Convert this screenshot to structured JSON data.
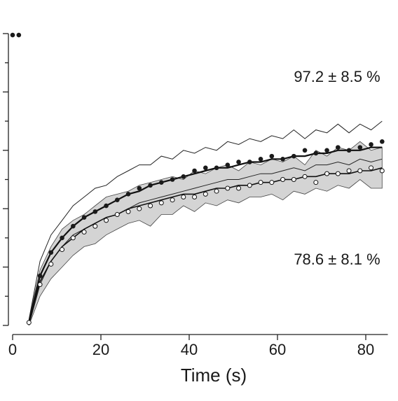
{
  "chart_data": {
    "type": "scatter",
    "xlabel": "Time (s)",
    "annotations": [
      "97.2 ± 8.5 %",
      "78.6 ± 8.1 %"
    ],
    "xlim": [
      -1,
      85
    ],
    "ylim": [
      0,
      1
    ],
    "xticks": [
      0,
      20,
      40,
      60,
      80
    ],
    "yticks": [
      0,
      0.1,
      0.2,
      0.3,
      0.4,
      0.5,
      0.6,
      0.7,
      0.8,
      0.9,
      1.0
    ],
    "series": [
      {
        "kind": "band",
        "color": "#d4d4d4",
        "x": [
          3.7,
          6.2,
          8.7,
          11.2,
          13.7,
          16.2,
          18.7,
          21.2,
          23.7,
          26.2,
          28.7,
          31.2,
          33.7,
          36.2,
          38.7,
          41.2,
          43.7,
          46.2,
          48.7,
          51.2,
          53.7,
          56.2,
          58.7,
          61.2,
          63.7,
          66.2,
          68.7,
          71.2,
          73.7,
          76.2,
          78.7,
          81.2,
          83.7
        ],
        "values": [
          0.02,
          0.19,
          0.27,
          0.33,
          0.36,
          0.38,
          0.41,
          0.44,
          0.45,
          0.46,
          0.48,
          0.49,
          0.5,
          0.51,
          0.5,
          0.53,
          0.52,
          0.54,
          0.55,
          0.53,
          0.56,
          0.55,
          0.57,
          0.56,
          0.58,
          0.55,
          0.6,
          0.58,
          0.61,
          0.6,
          0.63,
          0.6,
          0.61
        ],
        "lower": [
          0.0,
          0.1,
          0.16,
          0.2,
          0.24,
          0.27,
          0.28,
          0.31,
          0.33,
          0.35,
          0.36,
          0.34,
          0.38,
          0.38,
          0.41,
          0.39,
          0.42,
          0.41,
          0.43,
          0.42,
          0.44,
          0.44,
          0.45,
          0.43,
          0.46,
          0.45,
          0.47,
          0.46,
          0.48,
          0.47,
          0.5,
          0.47,
          0.47
        ]
      },
      {
        "kind": "line",
        "color": "#222222",
        "width": 1,
        "x": [
          3.7,
          6.2,
          8.7,
          11.2,
          13.7,
          16.2,
          18.7,
          21.2,
          23.7,
          26.2,
          28.7,
          31.2,
          33.7,
          36.2,
          38.7,
          41.2,
          43.7,
          46.2,
          48.7,
          51.2,
          53.7,
          56.2,
          58.7,
          61.2,
          63.7,
          66.2,
          68.7,
          71.2,
          73.7,
          76.2,
          78.7,
          81.2,
          83.7
        ],
        "values": [
          0.02,
          0.22,
          0.31,
          0.36,
          0.41,
          0.44,
          0.47,
          0.48,
          0.51,
          0.53,
          0.55,
          0.55,
          0.58,
          0.57,
          0.6,
          0.59,
          0.61,
          0.6,
          0.63,
          0.62,
          0.64,
          0.63,
          0.65,
          0.64,
          0.67,
          0.64,
          0.67,
          0.66,
          0.69,
          0.66,
          0.69,
          0.67,
          0.7
        ]
      },
      {
        "kind": "line",
        "color": "#222222",
        "width": 1,
        "x": [
          3.7,
          6.2,
          8.7,
          11.2,
          13.7,
          16.2,
          18.7,
          21.2,
          23.7,
          26.2,
          28.7,
          31.2,
          33.7,
          36.2,
          38.7,
          41.2,
          43.7,
          46.2,
          48.7,
          51.2,
          53.7,
          56.2,
          58.7,
          61.2,
          63.7,
          66.2,
          68.7,
          71.2,
          73.7,
          76.2,
          78.7,
          81.2,
          83.7
        ],
        "values": [
          0.0,
          0.14,
          0.22,
          0.27,
          0.31,
          0.33,
          0.35,
          0.37,
          0.38,
          0.4,
          0.42,
          0.43,
          0.44,
          0.45,
          0.46,
          0.47,
          0.48,
          0.49,
          0.5,
          0.5,
          0.51,
          0.52,
          0.52,
          0.53,
          0.54,
          0.53,
          0.55,
          0.55,
          0.56,
          0.55,
          0.57,
          0.56,
          0.57
        ]
      },
      {
        "kind": "line",
        "color": "#111111",
        "width": 2.2,
        "x": [
          3.7,
          6.2,
          8.7,
          11.2,
          13.7,
          16.2,
          18.7,
          21.2,
          23.7,
          26.2,
          28.7,
          31.2,
          33.7,
          36.2,
          38.7,
          41.2,
          43.7,
          46.2,
          48.7,
          51.2,
          53.7,
          56.2,
          58.7,
          61.2,
          63.7,
          66.2,
          68.7,
          71.2,
          73.7,
          76.2,
          78.7,
          81.2,
          83.7
        ],
        "values": [
          0.01,
          0.17,
          0.25,
          0.3,
          0.34,
          0.37,
          0.39,
          0.41,
          0.43,
          0.45,
          0.46,
          0.48,
          0.49,
          0.5,
          0.51,
          0.52,
          0.53,
          0.54,
          0.54,
          0.55,
          0.56,
          0.56,
          0.57,
          0.57,
          0.58,
          0.58,
          0.59,
          0.59,
          0.6,
          0.6,
          0.6,
          0.61,
          0.61
        ]
      },
      {
        "kind": "line",
        "color": "#111111",
        "width": 1.6,
        "x": [
          3.7,
          6.2,
          8.7,
          11.2,
          13.7,
          16.2,
          18.7,
          21.2,
          23.7,
          26.2,
          28.7,
          31.2,
          33.7,
          36.2,
          38.7,
          41.2,
          43.7,
          46.2,
          48.7,
          51.2,
          53.7,
          56.2,
          58.7,
          61.2,
          63.7,
          66.2,
          68.7,
          71.2,
          73.7,
          76.2,
          78.7,
          81.2,
          83.7
        ],
        "values": [
          0.01,
          0.15,
          0.22,
          0.27,
          0.3,
          0.33,
          0.35,
          0.37,
          0.38,
          0.4,
          0.41,
          0.42,
          0.43,
          0.44,
          0.45,
          0.45,
          0.46,
          0.47,
          0.47,
          0.48,
          0.48,
          0.49,
          0.49,
          0.5,
          0.5,
          0.51,
          0.51,
          0.52,
          0.52,
          0.52,
          0.53,
          0.53,
          0.54
        ]
      },
      {
        "kind": "filled",
        "color": "#1a1a1a",
        "x": [
          0,
          1.4,
          3.7,
          6.2,
          8.7,
          11.2,
          13.7,
          16.2,
          18.7,
          21.2,
          23.7,
          26.2,
          28.7,
          31.2,
          33.7,
          36.2,
          38.7,
          41.2,
          43.7,
          46.2,
          48.7,
          51.2,
          53.7,
          56.2,
          58.7,
          61.2,
          63.7,
          66.2,
          68.7,
          71.2,
          73.7,
          76.2,
          78.7,
          81.2,
          83.7
        ],
        "values": [
          0.995,
          0.995,
          0.01,
          0.17,
          0.25,
          0.3,
          0.34,
          0.37,
          0.39,
          0.41,
          0.43,
          0.45,
          0.47,
          0.48,
          0.49,
          0.5,
          0.51,
          0.53,
          0.54,
          0.54,
          0.55,
          0.56,
          0.56,
          0.57,
          0.58,
          0.57,
          0.58,
          0.6,
          0.59,
          0.6,
          0.61,
          0.6,
          0.61,
          0.62,
          0.63
        ]
      },
      {
        "kind": "open",
        "color": "#111111",
        "x": [
          3.7,
          6.2,
          8.7,
          11.2,
          13.7,
          16.2,
          18.7,
          21.2,
          23.7,
          26.2,
          28.7,
          31.2,
          33.7,
          36.2,
          38.7,
          41.2,
          43.7,
          46.2,
          48.7,
          51.2,
          53.7,
          56.2,
          58.7,
          61.2,
          63.7,
          66.2,
          68.7,
          71.2,
          73.7,
          76.2,
          78.7,
          81.2,
          83.7
        ],
        "values": [
          0.01,
          0.14,
          0.21,
          0.26,
          0.3,
          0.32,
          0.34,
          0.36,
          0.38,
          0.39,
          0.4,
          0.41,
          0.42,
          0.43,
          0.44,
          0.44,
          0.45,
          0.46,
          0.47,
          0.47,
          0.48,
          0.49,
          0.49,
          0.5,
          0.5,
          0.51,
          0.49,
          0.52,
          0.52,
          0.53,
          0.53,
          0.54,
          0.53
        ]
      }
    ]
  }
}
